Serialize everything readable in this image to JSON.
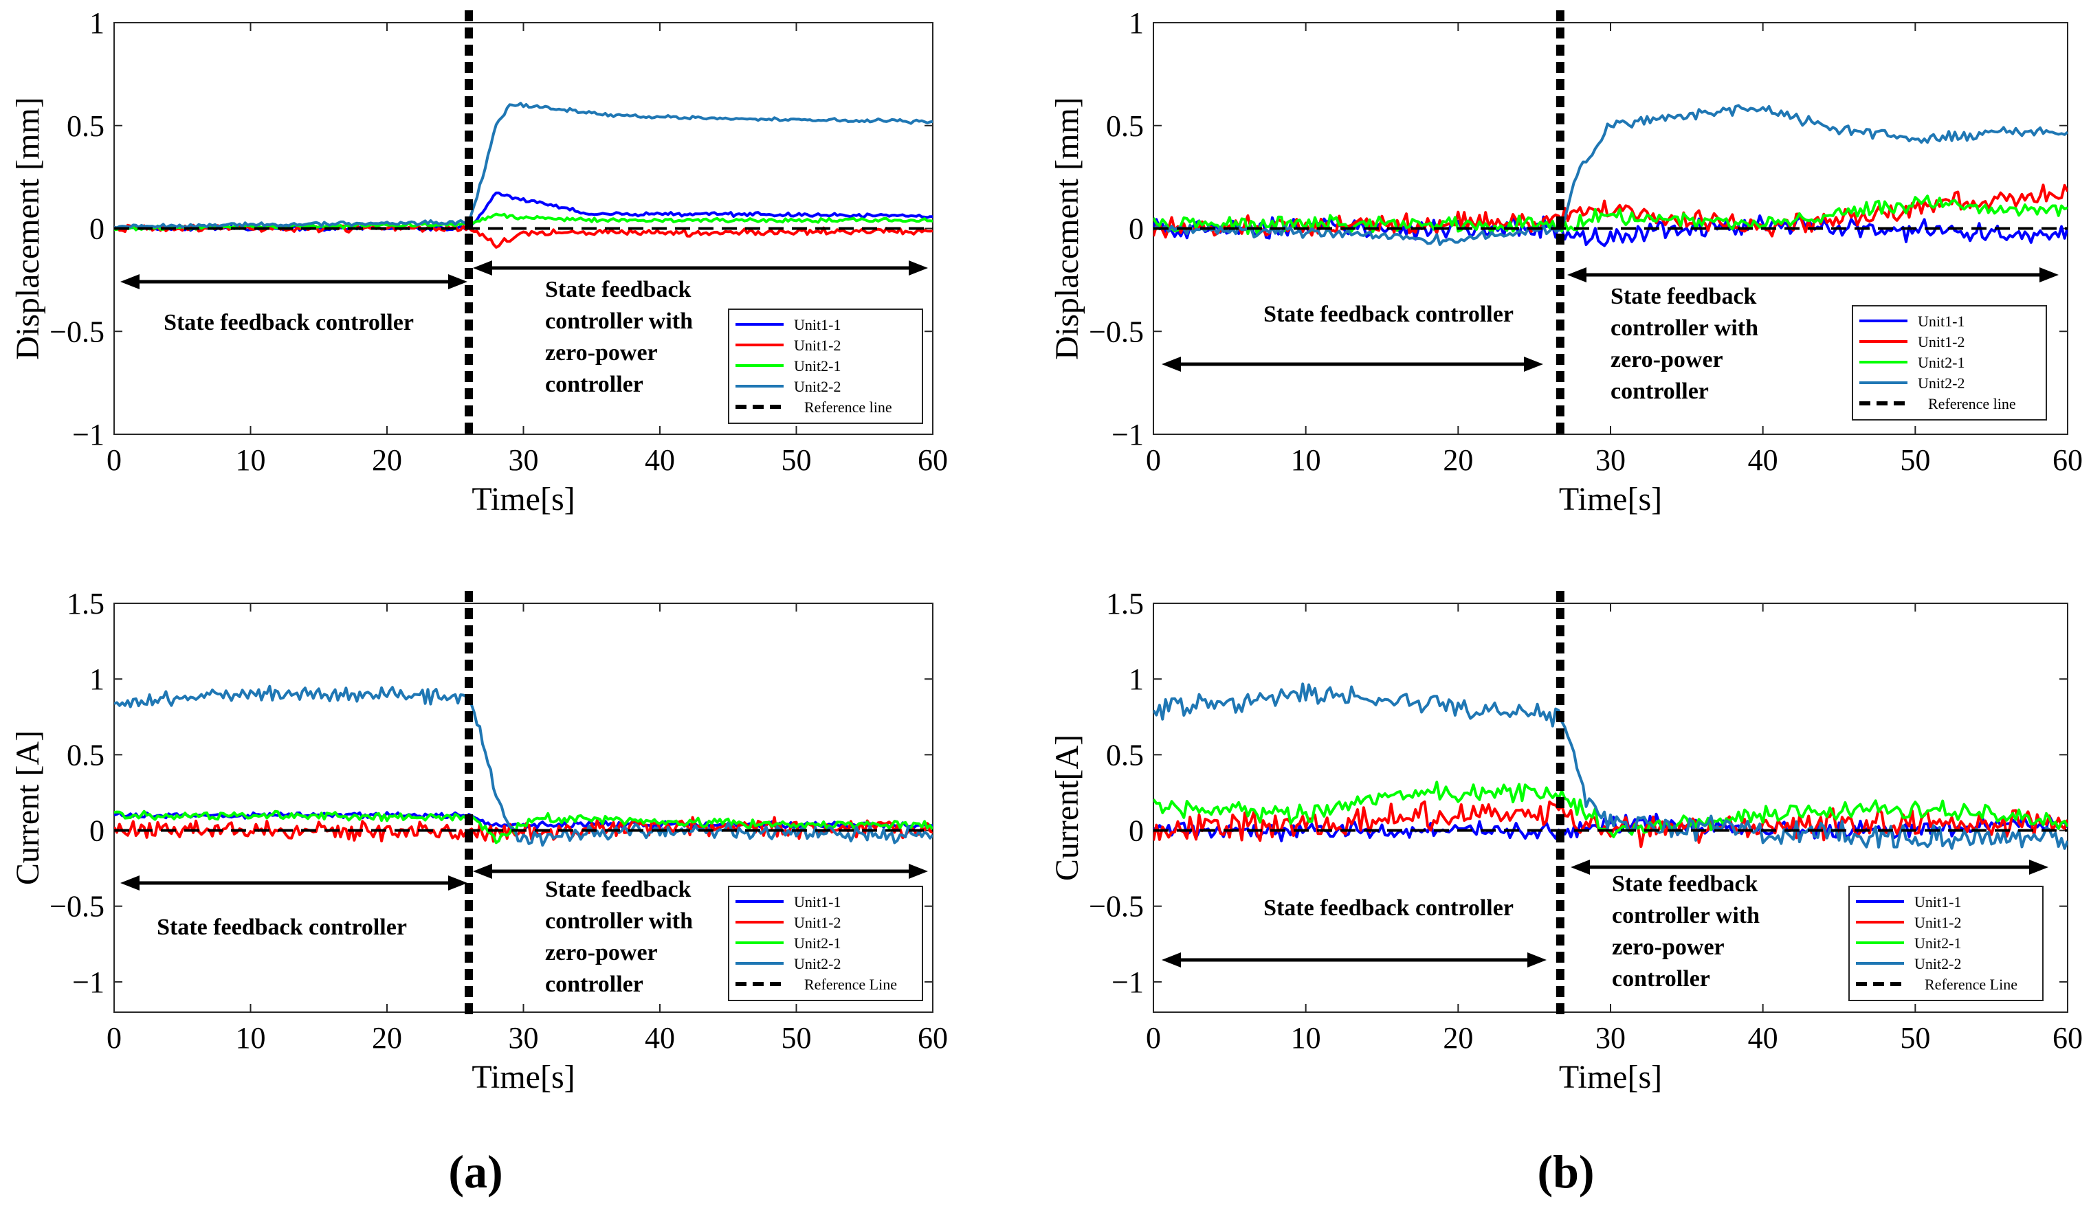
{
  "colors": {
    "unit1_1": "#0000FF",
    "unit1_2": "#FF0000",
    "unit2_1": "#00FF00",
    "unit2_2": "#1F77B4",
    "reference": "#000000"
  },
  "subfigure_labels": [
    "(a)",
    "(b)"
  ],
  "chart_data": [
    {
      "id": "a_top",
      "type": "line",
      "subfigure": "(a)",
      "xlabel": "Time[s]",
      "ylabel": "Displacement [mm]",
      "xlim": [
        0,
        60
      ],
      "ylim": [
        -1,
        1
      ],
      "xticks": [
        0,
        10,
        20,
        30,
        40,
        50,
        60
      ],
      "yticks": [
        -1,
        -0.5,
        0,
        0.5,
        1
      ],
      "switch_time": 26,
      "annotations": [
        "State feedback controller",
        "State feedback controller with zero-power controller"
      ],
      "legend": [
        "Unit1-1",
        "Unit1-2",
        "Unit2-1",
        "Unit2-2",
        "Reference line"
      ],
      "series": [
        {
          "name": "Unit1-1",
          "color_key": "unit1_1",
          "noise": 0.012,
          "pts": [
            [
              0,
              0.0
            ],
            [
              26,
              0.0
            ],
            [
              27,
              0.08
            ],
            [
              28,
              0.17
            ],
            [
              30,
              0.14
            ],
            [
              35,
              0.07
            ],
            [
              45,
              0.07
            ],
            [
              60,
              0.06
            ]
          ]
        },
        {
          "name": "Unit1-2",
          "color_key": "unit1_2",
          "noise": 0.02,
          "pts": [
            [
              0,
              0.0
            ],
            [
              26,
              0.0
            ],
            [
              28,
              -0.08
            ],
            [
              30,
              -0.02
            ],
            [
              40,
              -0.02
            ],
            [
              60,
              -0.01
            ]
          ]
        },
        {
          "name": "Unit2-1",
          "color_key": "unit2_1",
          "noise": 0.012,
          "pts": [
            [
              0,
              0.0
            ],
            [
              26,
              0.02
            ],
            [
              28,
              0.06
            ],
            [
              35,
              0.04
            ],
            [
              60,
              0.04
            ]
          ]
        },
        {
          "name": "Unit2-2",
          "color_key": "unit2_2",
          "noise": 0.012,
          "pts": [
            [
              0,
              0.01
            ],
            [
              26,
              0.03
            ],
            [
              27,
              0.25
            ],
            [
              28,
              0.5
            ],
            [
              29,
              0.6
            ],
            [
              30,
              0.6
            ],
            [
              35,
              0.56
            ],
            [
              40,
              0.54
            ],
            [
              50,
              0.53
            ],
            [
              60,
              0.52
            ]
          ]
        }
      ],
      "reference": 0
    },
    {
      "id": "a_bottom",
      "type": "line",
      "subfigure": "(a)",
      "xlabel": "Time[s]",
      "ylabel": "Current [A]",
      "xlim": [
        0,
        60
      ],
      "ylim": [
        -1.2,
        1.5
      ],
      "xticks": [
        0,
        10,
        20,
        30,
        40,
        50,
        60
      ],
      "yticks": [
        -1,
        -0.5,
        0,
        0.5,
        1,
        1.5
      ],
      "switch_time": 26,
      "annotations": [
        "State feedback controller",
        "State feedback controller with zero-power controller"
      ],
      "legend": [
        "Unit1-1",
        "Unit1-2",
        "Unit2-1",
        "Unit2-2",
        "Reference Line"
      ],
      "series": [
        {
          "name": "Unit1-1",
          "color_key": "unit1_1",
          "noise": 0.025,
          "pts": [
            [
              0,
              0.1
            ],
            [
              26,
              0.1
            ],
            [
              28,
              0.03
            ],
            [
              35,
              0.04
            ],
            [
              60,
              0.03
            ]
          ]
        },
        {
          "name": "Unit1-2",
          "color_key": "unit1_2",
          "noise": 0.07,
          "pts": [
            [
              0,
              0.0
            ],
            [
              26,
              0.0
            ],
            [
              28,
              -0.02
            ],
            [
              40,
              0.03
            ],
            [
              60,
              0.0
            ]
          ]
        },
        {
          "name": "Unit2-1",
          "color_key": "unit2_1",
          "noise": 0.035,
          "pts": [
            [
              0,
              0.1
            ],
            [
              26,
              0.09
            ],
            [
              28,
              -0.06
            ],
            [
              31,
              0.08
            ],
            [
              40,
              0.06
            ],
            [
              60,
              0.03
            ]
          ]
        },
        {
          "name": "Unit2-2",
          "color_key": "unit2_2",
          "noise": 0.06,
          "pts": [
            [
              0,
              0.85
            ],
            [
              10,
              0.9
            ],
            [
              20,
              0.9
            ],
            [
              26,
              0.88
            ],
            [
              27,
              0.6
            ],
            [
              28,
              0.25
            ],
            [
              29,
              0.0
            ],
            [
              30,
              -0.05
            ],
            [
              40,
              0.0
            ],
            [
              60,
              -0.03
            ]
          ]
        }
      ],
      "reference": 0
    },
    {
      "id": "b_top",
      "type": "line",
      "subfigure": "(b)",
      "xlabel": "Time[s]",
      "ylabel": "Displacement [mm]",
      "xlim": [
        0,
        60
      ],
      "ylim": [
        -1,
        1
      ],
      "xticks": [
        0,
        10,
        20,
        30,
        40,
        50,
        60
      ],
      "yticks": [
        -1,
        -0.5,
        0,
        0.5,
        1
      ],
      "switch_time": 26.7,
      "annotations": [
        "State feedback controller",
        "State feedback controller with zero-power controller"
      ],
      "legend": [
        "Unit1-1",
        "Unit1-2",
        "Unit2-1",
        "Unit2-2",
        "Reference line"
      ],
      "series": [
        {
          "name": "Unit1-1",
          "color_key": "unit1_1",
          "noise": 0.06,
          "pts": [
            [
              0,
              0.0
            ],
            [
              26.7,
              0.0
            ],
            [
              28,
              -0.04
            ],
            [
              40,
              0.02
            ],
            [
              60,
              -0.04
            ]
          ]
        },
        {
          "name": "Unit1-2",
          "color_key": "unit1_2",
          "noise": 0.06,
          "pts": [
            [
              0,
              0.0
            ],
            [
              26,
              0.03
            ],
            [
              28,
              0.1
            ],
            [
              40,
              0.0
            ],
            [
              50,
              0.1
            ],
            [
              60,
              0.18
            ]
          ]
        },
        {
          "name": "Unit2-1",
          "color_key": "unit2_1",
          "noise": 0.05,
          "pts": [
            [
              0,
              0.02
            ],
            [
              26.7,
              0.02
            ],
            [
              30,
              0.06
            ],
            [
              40,
              0.02
            ],
            [
              50,
              0.12
            ],
            [
              60,
              0.08
            ]
          ]
        },
        {
          "name": "Unit2-2",
          "color_key": "unit2_2",
          "noise": 0.03,
          "pts": [
            [
              0,
              0.0
            ],
            [
              15,
              -0.03
            ],
            [
              18,
              -0.06
            ],
            [
              26.7,
              0.0
            ],
            [
              28,
              0.3
            ],
            [
              30,
              0.5
            ],
            [
              35,
              0.55
            ],
            [
              40,
              0.58
            ],
            [
              45,
              0.48
            ],
            [
              50,
              0.44
            ],
            [
              55,
              0.46
            ],
            [
              60,
              0.48
            ]
          ]
        }
      ],
      "reference": 0
    },
    {
      "id": "b_bottom",
      "type": "line",
      "subfigure": "(b)",
      "xlabel": "Time[s]",
      "ylabel": "Current[A]",
      "xlim": [
        0,
        60
      ],
      "ylim": [
        -1.2,
        1.5
      ],
      "xticks": [
        0,
        10,
        20,
        30,
        40,
        50,
        60
      ],
      "yticks": [
        -1,
        -0.5,
        0,
        0.5,
        1,
        1.5
      ],
      "switch_time": 26.7,
      "annotations": [
        "State feedback controller",
        "State feedback controller with zero-power controller"
      ],
      "legend": [
        "Unit1-1",
        "Unit1-2",
        "Unit2-1",
        "Unit2-2",
        "Reference Line"
      ],
      "series": [
        {
          "name": "Unit1-1",
          "color_key": "unit1_1",
          "noise": 0.07,
          "pts": [
            [
              0,
              0.0
            ],
            [
              26.7,
              0.0
            ],
            [
              30,
              0.05
            ],
            [
              45,
              0.0
            ],
            [
              60,
              0.05
            ]
          ]
        },
        {
          "name": "Unit1-2",
          "color_key": "unit1_2",
          "noise": 0.12,
          "pts": [
            [
              0,
              0.0
            ],
            [
              10,
              0.05
            ],
            [
              20,
              0.1
            ],
            [
              26.7,
              0.1
            ],
            [
              30,
              0.0
            ],
            [
              45,
              0.05
            ],
            [
              60,
              0.05
            ]
          ]
        },
        {
          "name": "Unit2-1",
          "color_key": "unit2_1",
          "noise": 0.08,
          "pts": [
            [
              0,
              0.15
            ],
            [
              10,
              0.1
            ],
            [
              16,
              0.25
            ],
            [
              26.7,
              0.25
            ],
            [
              30,
              0.0
            ],
            [
              40,
              0.1
            ],
            [
              50,
              0.15
            ],
            [
              60,
              0.05
            ]
          ]
        },
        {
          "name": "Unit2-2",
          "color_key": "unit2_2",
          "noise": 0.09,
          "pts": [
            [
              0,
              0.8
            ],
            [
              10,
              0.9
            ],
            [
              20,
              0.82
            ],
            [
              26.7,
              0.75
            ],
            [
              27.5,
              0.55
            ],
            [
              28.5,
              0.2
            ],
            [
              30,
              0.05
            ],
            [
              40,
              0.0
            ],
            [
              50,
              -0.05
            ],
            [
              60,
              -0.05
            ]
          ]
        }
      ],
      "reference": 0
    }
  ]
}
